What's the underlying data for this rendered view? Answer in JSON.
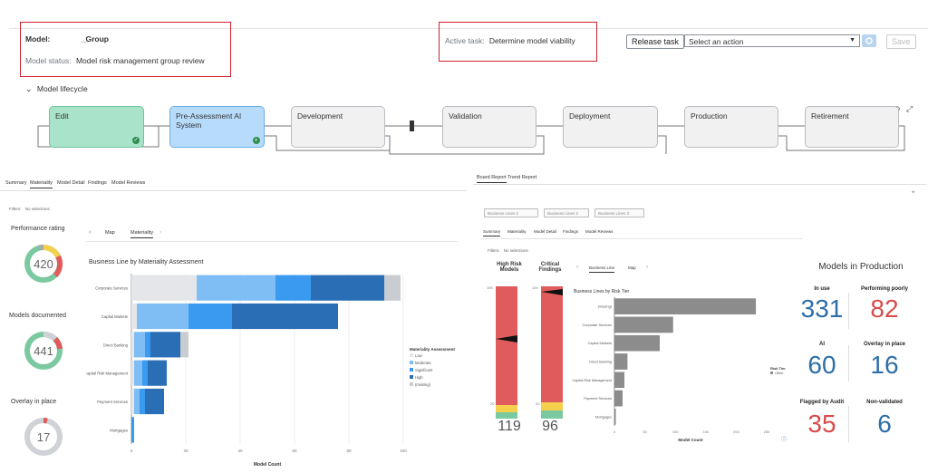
{
  "header": {
    "model_label": "Model:",
    "model_value": "_Group",
    "status_label": "Model status:",
    "status_value": "Model risk management group review",
    "active_task_label": "Active task:",
    "active_task_value": "Determine model viability",
    "release_task": "Release task",
    "action_select": "Select an action",
    "save": "Save"
  },
  "lifecycle": {
    "title": "Model lifecycle",
    "stages": [
      "Edit",
      "Pre-Assessment AI System",
      "Development",
      "Validation",
      "Deployment",
      "Production",
      "Retirement"
    ]
  },
  "left_panel": {
    "tabs": [
      "Summary",
      "Materiality",
      "Model Detail",
      "Findings",
      "Model Reviews"
    ],
    "filters": "Filters:",
    "no_selections": "No selections",
    "gauges": [
      {
        "label": "Performance rating",
        "value": "420"
      },
      {
        "label": "Models documented",
        "value": "441"
      },
      {
        "label": "Overlay in place",
        "value": "17"
      }
    ],
    "subtabs": [
      "Map",
      "Materiality"
    ]
  },
  "right_panel": {
    "tabs": [
      "Board Report",
      "Trend Report"
    ],
    "selects": [
      "Business Lines 1",
      "Business Lines 2",
      "Business Lines 3"
    ],
    "inner_tabs": [
      "Summary",
      "Materiality",
      "Model Detail",
      "Findings",
      "Model Reviews"
    ],
    "filters": "Filters:",
    "no_selections": "No selections",
    "high_risk_label": "High Risk Models",
    "high_risk_value": "119",
    "critical_label": "Critical Findings",
    "critical_value": "96",
    "chart_tabs": [
      "Business Line",
      "Map"
    ],
    "kpi_title": "Models in Production",
    "kpis": [
      {
        "label": "In use",
        "value": "331",
        "color": "#2e6ea8"
      },
      {
        "label": "Performing poorly",
        "value": "82",
        "color": "#d64b4b"
      },
      {
        "label": "AI",
        "value": "60",
        "color": "#2e6ea8"
      },
      {
        "label": "Overlay in place",
        "value": "16",
        "color": "#2e6ea8"
      },
      {
        "label": "Flagged by Audit",
        "value": "35",
        "color": "#d64b4b"
      },
      {
        "label": "Non-validated",
        "value": "6",
        "color": "#2e6ea8"
      }
    ]
  },
  "chart_data": [
    {
      "type": "bar",
      "orientation": "horizontal",
      "stacked": true,
      "title": "Business Line by Materiality Assessment",
      "xlabel": "Model Count",
      "xlim": [
        0,
        100
      ],
      "xticks": [
        "0",
        "20",
        "40",
        "60",
        "80",
        "100"
      ],
      "legend_title": "Materiality Assessment",
      "categories": [
        "Corporate Services",
        "Capital Markets",
        "Direct Banking",
        "Capital Risk Management",
        "Payment Services",
        "Mortgages"
      ],
      "series": [
        {
          "name": "Low",
          "color": "#e4e6e9",
          "values": [
            24,
            2,
            1,
            1,
            1,
            0
          ]
        },
        {
          "name": "Moderate",
          "color": "#7fbef5",
          "values": [
            29,
            19,
            4,
            3,
            2,
            0
          ]
        },
        {
          "name": "Significant",
          "color": "#3a9af0",
          "values": [
            13,
            16,
            2,
            2,
            2,
            1
          ]
        },
        {
          "name": "High",
          "color": "#2a6fb5",
          "values": [
            27,
            39,
            11,
            7,
            7,
            0
          ]
        },
        {
          "name": "(missing)",
          "color": "#c9ccd1",
          "values": [
            6,
            0,
            3,
            0,
            0,
            0
          ]
        }
      ]
    },
    {
      "type": "bar",
      "orientation": "horizontal",
      "title": "Business Lines by Risk Tier",
      "xlabel": "Model Count",
      "xlim": [
        0,
        250
      ],
      "xticks": [
        "0",
        "50",
        "100",
        "150",
        "200",
        "250"
      ],
      "legend_title": "Risk Tier",
      "categories": [
        "(missing)",
        "Corporate Services",
        "Capital Markets",
        "Direct Banking",
        "Capital Risk Management",
        "Payment Services",
        "Mortgages"
      ],
      "series": [
        {
          "name": "Other",
          "color": "#8c8c8c",
          "values": [
            232,
            96,
            74,
            21,
            16,
            13,
            2
          ]
        }
      ]
    }
  ]
}
